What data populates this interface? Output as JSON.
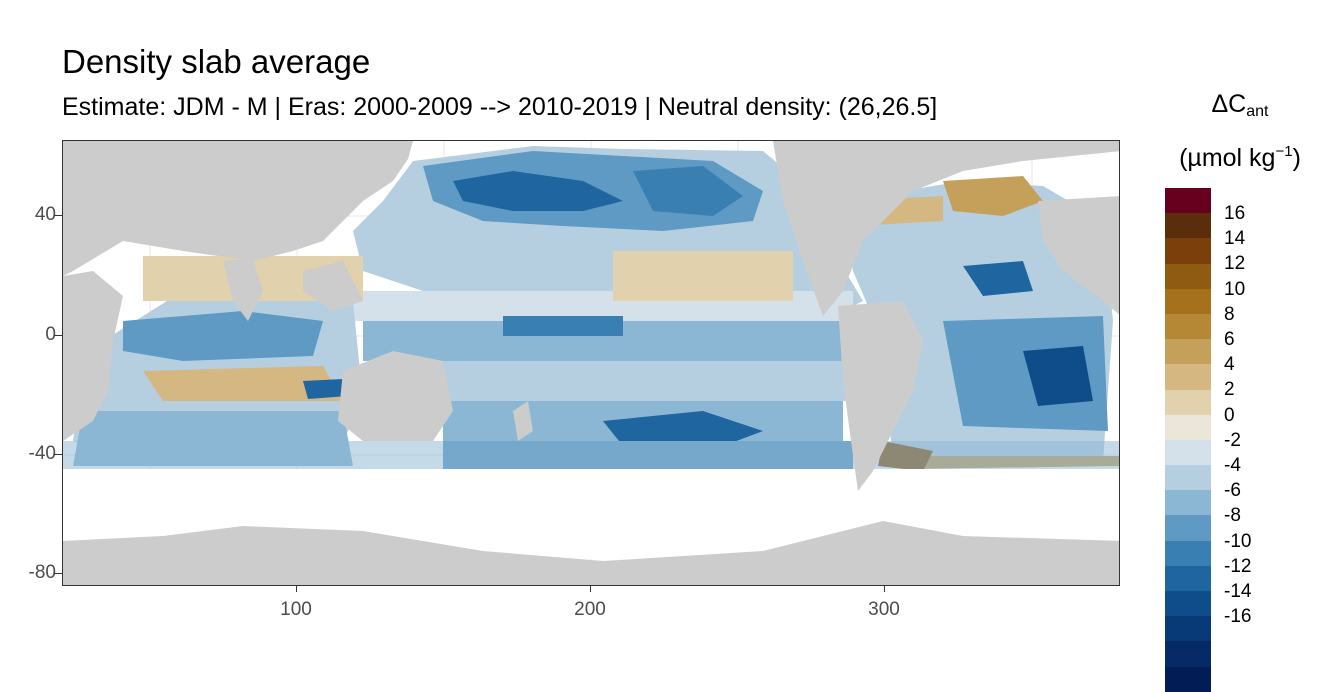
{
  "title": "Density slab average",
  "subtitle": "Estimate: JDM - M | Eras: 2000-2009 --> 2010-2019 | Neutral density: (26,26.5]",
  "legend": {
    "title_main": "ΔC",
    "title_sub": "ant",
    "unit_prefix": "(µmol kg",
    "unit_exp": "−1",
    "unit_suffix": ")",
    "colors": [
      "#67001f",
      "#5a2d0c",
      "#7a3f0b",
      "#8f5a12",
      "#a6711d",
      "#b58835",
      "#c5a05a",
      "#d4b781",
      "#e2d1ad",
      "#ece6da",
      "#d4e1ea",
      "#b5cfe1",
      "#8bb6d4",
      "#5e9ac3",
      "#3a7fb1",
      "#1f65a0",
      "#0f4c8a",
      "#093a78",
      "#052a66",
      "#021d56"
    ],
    "labels": [
      "16",
      "14",
      "12",
      "10",
      "8",
      "6",
      "4",
      "2",
      "0",
      "-2",
      "-4",
      "-6",
      "-8",
      "-10",
      "-12",
      "-14",
      "-16"
    ]
  },
  "axes": {
    "y_ticks": [
      "40",
      "0",
      "-40",
      "-80"
    ],
    "x_ticks": [
      "100",
      "200",
      "300"
    ]
  },
  "colors": {
    "land": "#cccccc",
    "no_data": "#ffffff",
    "grid": "#ebebeb"
  }
}
